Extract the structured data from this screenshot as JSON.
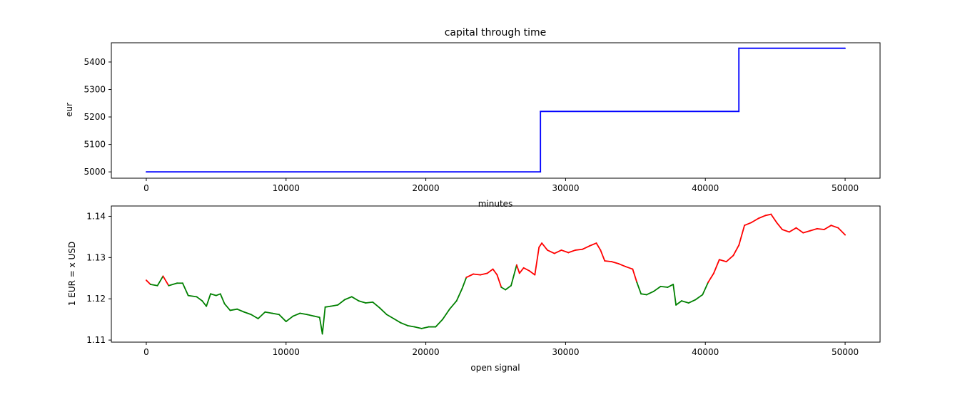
{
  "chart_data": [
    {
      "type": "line",
      "title": "capital through time",
      "xlabel": "minutes",
      "ylabel": "eur",
      "xlim": [
        -2500,
        52500
      ],
      "ylim": [
        4977,
        5470
      ],
      "xticks": [
        0,
        10000,
        20000,
        30000,
        40000,
        50000
      ],
      "yticks": [
        5000,
        5100,
        5200,
        5300,
        5400
      ],
      "grid": false,
      "series": [
        {
          "color": "#0000ff",
          "step": true,
          "x": [
            0,
            28200,
            28200,
            42400,
            42400,
            50000
          ],
          "y": [
            5000,
            5000,
            5220,
            5220,
            5450,
            5450
          ]
        }
      ]
    },
    {
      "type": "line",
      "title": "",
      "xlabel": "open signal",
      "ylabel": "1 EUR = x USD",
      "xlim": [
        -2500,
        52500
      ],
      "ylim": [
        1.1095,
        1.1425
      ],
      "xticks": [
        0,
        10000,
        20000,
        30000,
        40000,
        50000
      ],
      "yticks": [
        1.11,
        1.12,
        1.13,
        1.14
      ],
      "grid": false,
      "colors": {
        "red": "#ff0000",
        "green": "#008000"
      },
      "series": [
        {
          "x": [
            0,
            300,
            800,
            1200,
            1600,
            2200,
            2600,
            3000,
            3600,
            4000,
            4300,
            4600,
            5000,
            5300,
            5600,
            6000,
            6500,
            7000,
            7500,
            8000,
            8500,
            9000,
            9500,
            10000,
            10500,
            11000,
            11500,
            12000,
            12400,
            12600,
            12800,
            13200,
            13700,
            14200,
            14700,
            15200,
            15700,
            16200,
            16700,
            17200,
            17700,
            18200,
            18700,
            19200,
            19700,
            20200,
            20700,
            21200,
            21700,
            22200,
            22600,
            22900,
            23400,
            23900,
            24400,
            24800,
            25100,
            25400,
            25700,
            26100,
            26500,
            26700,
            27000,
            27400,
            27800,
            28100,
            28300,
            28700,
            29200,
            29700,
            30200,
            30700,
            31200,
            31700,
            32200,
            32500,
            32800,
            33300,
            33800,
            34300,
            34800,
            35100,
            35400,
            35800,
            36300,
            36800,
            37300,
            37700,
            37900,
            38300,
            38800,
            39300,
            39800,
            40200,
            40600,
            41000,
            41500,
            42000,
            42400,
            42800,
            43300,
            43800,
            44300,
            44700,
            45100,
            45500,
            46000,
            46500,
            47000,
            47500,
            48000,
            48500,
            49000,
            49500,
            50000
          ],
          "y": [
            1.1245,
            1.1235,
            1.1232,
            1.1255,
            1.1232,
            1.1238,
            1.1238,
            1.1208,
            1.1205,
            1.1195,
            1.1182,
            1.1212,
            1.1208,
            1.1212,
            1.1188,
            1.1172,
            1.1175,
            1.1168,
            1.1162,
            1.1152,
            1.1168,
            1.1165,
            1.1162,
            1.1145,
            1.1158,
            1.1165,
            1.1162,
            1.1158,
            1.1155,
            1.1115,
            1.118,
            1.1182,
            1.1185,
            1.1198,
            1.1205,
            1.1195,
            1.119,
            1.1192,
            1.1178,
            1.1162,
            1.1152,
            1.1142,
            1.1135,
            1.1132,
            1.1128,
            1.1132,
            1.1132,
            1.115,
            1.1175,
            1.1195,
            1.1225,
            1.1252,
            1.126,
            1.1258,
            1.1262,
            1.1272,
            1.1258,
            1.1228,
            1.1222,
            1.1232,
            1.1282,
            1.1262,
            1.1275,
            1.1268,
            1.1258,
            1.1325,
            1.1335,
            1.1318,
            1.131,
            1.1318,
            1.1312,
            1.1318,
            1.132,
            1.1328,
            1.1335,
            1.1318,
            1.1292,
            1.129,
            1.1285,
            1.1278,
            1.1272,
            1.124,
            1.1212,
            1.121,
            1.1218,
            1.123,
            1.1228,
            1.1235,
            1.1185,
            1.1195,
            1.119,
            1.1198,
            1.121,
            1.124,
            1.1262,
            1.1295,
            1.129,
            1.1305,
            1.133,
            1.1378,
            1.1385,
            1.1395,
            1.1402,
            1.1405,
            1.1385,
            1.1368,
            1.1362,
            1.1372,
            1.136,
            1.1365,
            1.137,
            1.1368,
            1.1378,
            1.1372,
            1.1355
          ],
          "signal": [
            "red",
            "green",
            "green",
            "red",
            "green",
            "green",
            "green",
            "green",
            "green",
            "green",
            "green",
            "green",
            "green",
            "green",
            "green",
            "green",
            "green",
            "green",
            "green",
            "green",
            "green",
            "green",
            "green",
            "green",
            "green",
            "green",
            "green",
            "green",
            "green",
            "green",
            "green",
            "green",
            "green",
            "green",
            "green",
            "green",
            "green",
            "green",
            "green",
            "green",
            "green",
            "green",
            "green",
            "green",
            "green",
            "green",
            "green",
            "green",
            "green",
            "green",
            "green",
            "red",
            "red",
            "red",
            "red",
            "red",
            "red",
            "green",
            "green",
            "green",
            "red",
            "red",
            "red",
            "red",
            "red",
            "red",
            "red",
            "red",
            "red",
            "red",
            "red",
            "red",
            "red",
            "red",
            "red",
            "red",
            "red",
            "red",
            "red",
            "red",
            "red",
            "green",
            "green",
            "green",
            "green",
            "green",
            "green",
            "green",
            "green",
            "green",
            "green",
            "green",
            "green",
            "red",
            "red",
            "red",
            "red",
            "red",
            "red",
            "red",
            "red",
            "red",
            "red",
            "red",
            "red",
            "red",
            "red",
            "red",
            "red",
            "red",
            "red",
            "red",
            "red",
            "red",
            "red"
          ]
        }
      ]
    }
  ]
}
